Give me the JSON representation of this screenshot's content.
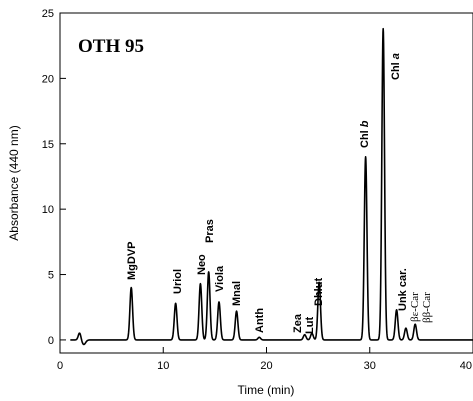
{
  "chart_data": {
    "type": "line",
    "title": "OTH 95",
    "xlabel": "Time (min)",
    "ylabel": "Absorbance (440 nm)",
    "xlim": [
      0,
      40
    ],
    "ylim": [
      -1,
      25
    ],
    "x_ticks": [
      0,
      10,
      20,
      30,
      40
    ],
    "y_ticks": [
      0,
      5,
      10,
      15,
      20,
      25
    ],
    "baseline": 0.0,
    "peaks": [
      {
        "x": 1.9,
        "y": 0.55,
        "label": ""
      },
      {
        "x": 6.9,
        "y": 4.0,
        "label": "MgDVP"
      },
      {
        "x": 11.2,
        "y": 2.8,
        "label": "Uriol"
      },
      {
        "x": 13.6,
        "y": 4.3,
        "label": "Neo"
      },
      {
        "x": 14.4,
        "y": 5.2,
        "label": "Pras"
      },
      {
        "x": 15.4,
        "y": 2.9,
        "label": "Viola"
      },
      {
        "x": 17.1,
        "y": 2.2,
        "label": "Mnal"
      },
      {
        "x": 19.3,
        "y": 0.2,
        "label": "Anth"
      },
      {
        "x": 23.7,
        "y": 0.4,
        "label": "Zea"
      },
      {
        "x": 24.4,
        "y": 0.5,
        "label": "Lut"
      },
      {
        "x": 25.1,
        "y": 4.4,
        "label": "Dhlut"
      },
      {
        "x": 29.6,
        "y": 14.0,
        "label": "Chl b"
      },
      {
        "x": 31.3,
        "y": 23.8,
        "label": "Chl a"
      },
      {
        "x": 32.6,
        "y": 2.3,
        "label": "Unk car."
      },
      {
        "x": 33.5,
        "y": 0.9,
        "label": "βε-Car"
      },
      {
        "x": 34.4,
        "y": 1.2,
        "label": "ββ-Car"
      }
    ],
    "labels": {
      "peak_1": "MgDVP",
      "peak_2": "Uriol",
      "peak_3": "Neo",
      "peak_4": "Pras",
      "peak_5": "Viola",
      "peak_6": "Mnal",
      "peak_7": "Anth",
      "peak_8": "Zea",
      "peak_9": "Lut",
      "peak_10": "Dhlut",
      "chl_b_prefix": "Chl",
      "chl_b_suffix": "b",
      "chl_a_prefix": "Chl",
      "chl_a_suffix": "a",
      "peak_13": "Unk car.",
      "peak_14": "βε-Car",
      "peak_15": "ββ-Car"
    },
    "grid": false,
    "legend": "none"
  }
}
